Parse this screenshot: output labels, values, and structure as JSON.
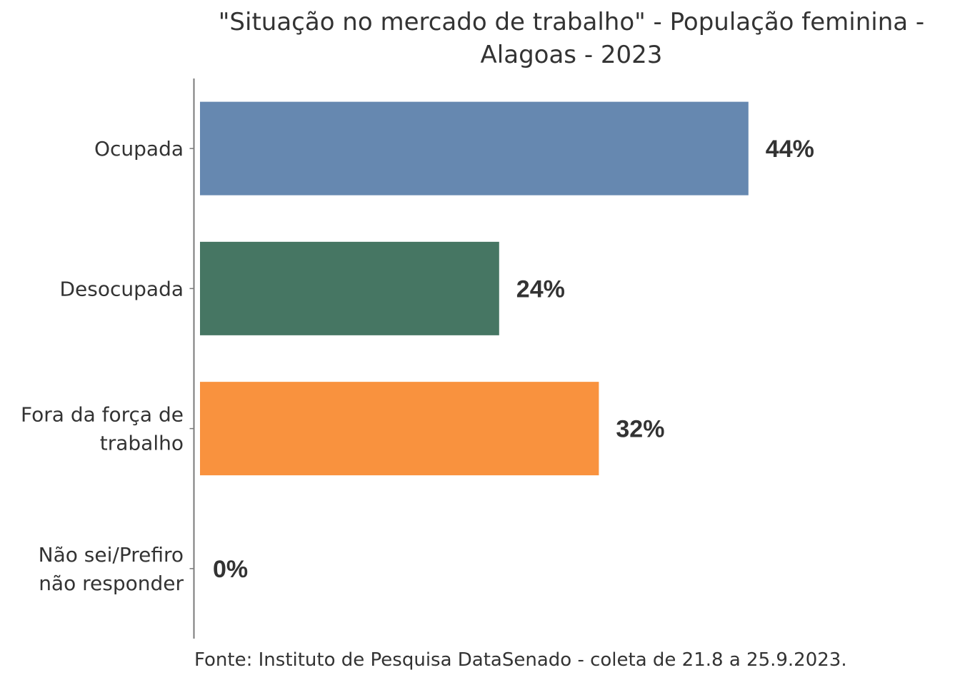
{
  "chart_data": {
    "type": "bar",
    "orientation": "horizontal",
    "title_lines": [
      "\"Situação no mercado de trabalho\" - População feminina -",
      "Alagoas - 2023"
    ],
    "categories": [
      [
        "Ocupada"
      ],
      [
        "Desocupada"
      ],
      [
        "Fora da força de",
        "trabalho"
      ],
      [
        "Não sei/Prefiro",
        "não responder"
      ]
    ],
    "values": [
      44,
      24,
      32,
      0
    ],
    "value_labels": [
      "44%",
      "24%",
      "32%",
      "0%"
    ],
    "colors": [
      "#6688B0",
      "#467663",
      "#F9923E",
      "#9A9A9A"
    ],
    "xlim": [
      0,
      50
    ],
    "grid": false,
    "legend": "none",
    "caption": "Fonte: Instituto de Pesquisa DataSenado - coleta de 21.8 a 25.9.2023."
  }
}
